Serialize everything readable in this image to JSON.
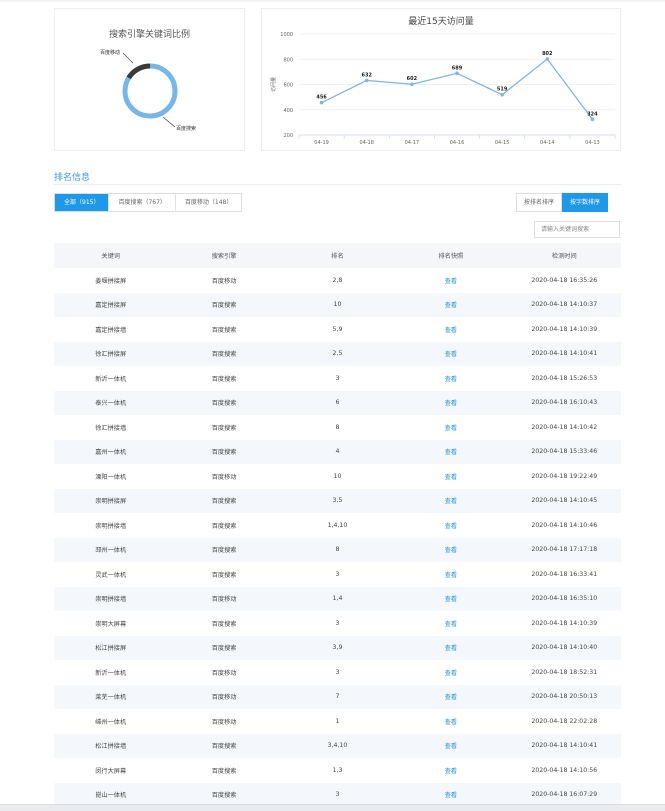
{
  "donut": {
    "title": "搜索引擎关键词比例",
    "label_mobile": "百度移动",
    "label_pc": "百度搜索",
    "mobile_share": 0.162,
    "color_pc": "#76b6ea",
    "color_mobile": "#3a3a3a"
  },
  "chart_data": {
    "type": "line",
    "title": "最近15天访问量",
    "ylabel": "访问量",
    "ylim": [
      200,
      1000
    ],
    "yticks": [
      200,
      400,
      600,
      800,
      1000
    ],
    "categories": [
      "04-19",
      "04-18",
      "04-17",
      "04-16",
      "04-15",
      "04-14",
      "04-13"
    ],
    "values": [
      456,
      632,
      602,
      689,
      519,
      802,
      324
    ],
    "color": "#7cb5ec",
    "grid": true
  },
  "section": {
    "title": "排名信息"
  },
  "tabs": [
    {
      "label": "全部（915）",
      "active": true
    },
    {
      "label": "百度搜索（767）",
      "active": false
    },
    {
      "label": "百度移动（148）",
      "active": false
    }
  ],
  "sort_buttons": [
    {
      "label": "按排名排序",
      "active": false
    },
    {
      "label": "按字数排序",
      "active": true
    }
  ],
  "search": {
    "placeholder": "请输入关键词搜索"
  },
  "table": {
    "headers": [
      "关键词",
      "搜索引擎",
      "排名",
      "排名快照",
      "检测时间"
    ],
    "rows": [
      [
        "姜堰拼接屏",
        "百度移动",
        "2,8",
        "查看",
        "2020-04-18 16:35:26"
      ],
      [
        "嘉定拼接屏",
        "百度搜索",
        "10",
        "查看",
        "2020-04-18 14:10:37"
      ],
      [
        "嘉定拼接墙",
        "百度搜索",
        "5,9",
        "查看",
        "2020-04-18 14:10:39"
      ],
      [
        "徐汇拼接屏",
        "百度搜索",
        "2,5",
        "查看",
        "2020-04-18 14:10:41"
      ],
      [
        "新沂一体机",
        "百度搜索",
        "3",
        "查看",
        "2020-04-18 15:26:53"
      ],
      [
        "泰兴一体机",
        "百度搜索",
        "6",
        "查看",
        "2020-04-18 16:10:43"
      ],
      [
        "徐汇拼接墙",
        "百度搜索",
        "8",
        "查看",
        "2020-04-18 14:10:42"
      ],
      [
        "嘉州一体机",
        "百度搜索",
        "4",
        "查看",
        "2020-04-18 15:33:46"
      ],
      [
        "溧阳一体机",
        "百度移动",
        "10",
        "查看",
        "2020-04-18 19:22:49"
      ],
      [
        "崇明拼接屏",
        "百度搜索",
        "3,5",
        "查看",
        "2020-04-18 14:10:45"
      ],
      [
        "崇明拼接墙",
        "百度搜索",
        "1,4,10",
        "查看",
        "2020-04-18 14:10:46"
      ],
      [
        "邳州一体机",
        "百度搜索",
        "8",
        "查看",
        "2020-04-18 17:17:18"
      ],
      [
        "灵武一体机",
        "百度搜索",
        "3",
        "查看",
        "2020-04-18 16:33:41"
      ],
      [
        "崇明拼接墙",
        "百度移动",
        "1,4",
        "查看",
        "2020-04-18 16:35:10"
      ],
      [
        "崇明大屏幕",
        "百度搜索",
        "3",
        "查看",
        "2020-04-18 14:10:39"
      ],
      [
        "松江拼接屏",
        "百度搜索",
        "3,9",
        "查看",
        "2020-04-18 14:10:40"
      ],
      [
        "新沂一体机",
        "百度移动",
        "3",
        "查看",
        "2020-04-18 18:52:31"
      ],
      [
        "莱芜一体机",
        "百度移动",
        "7",
        "查看",
        "2020-04-18 20:50:13"
      ],
      [
        "嵊州一体机",
        "百度移动",
        "1",
        "查看",
        "2020-04-18 22:02:28"
      ],
      [
        "松江拼接墙",
        "百度搜索",
        "3,4,10",
        "查看",
        "2020-04-18 14:10:41"
      ],
      [
        "闵行大屏幕",
        "百度搜索",
        "1,3",
        "查看",
        "2020-04-18 14:10:56"
      ],
      [
        "崑山一体机",
        "百度搜索",
        "3",
        "查看",
        "2020-04-18 16:07:29"
      ]
    ]
  }
}
